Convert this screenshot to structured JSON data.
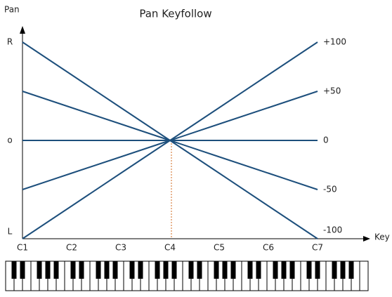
{
  "chart_data": {
    "type": "line",
    "title": "Pan Keyfollow",
    "x_label": "Key",
    "y_label": "Pan",
    "categories": [
      "C1",
      "C2",
      "C3",
      "C4",
      "C5",
      "C6",
      "C7"
    ],
    "ylim": [
      -100,
      100
    ],
    "yticks": [
      {
        "value": -100,
        "label": "L"
      },
      {
        "value": 0,
        "label": "o"
      },
      {
        "value": 100,
        "label": "R"
      }
    ],
    "series": [
      {
        "name": "+100",
        "color": "#1d4f7c",
        "values": [
          -100,
          -66.7,
          -33.3,
          0,
          33.3,
          66.7,
          100
        ]
      },
      {
        "name": "+50",
        "color": "#1d4f7c",
        "values": [
          -50,
          -33.3,
          -16.7,
          0,
          16.7,
          33.3,
          50
        ]
      },
      {
        "name": "0",
        "color": "#1d4f7c",
        "values": [
          0,
          0,
          0,
          0,
          0,
          0,
          0
        ]
      },
      {
        "name": "-50",
        "color": "#1d4f7c",
        "values": [
          50,
          33.3,
          16.7,
          0,
          -16.7,
          -33.3,
          -50
        ]
      },
      {
        "name": "-100",
        "color": "#1d4f7c",
        "values": [
          100,
          66.7,
          33.3,
          0,
          -33.3,
          -66.7,
          -100
        ]
      }
    ]
  }
}
